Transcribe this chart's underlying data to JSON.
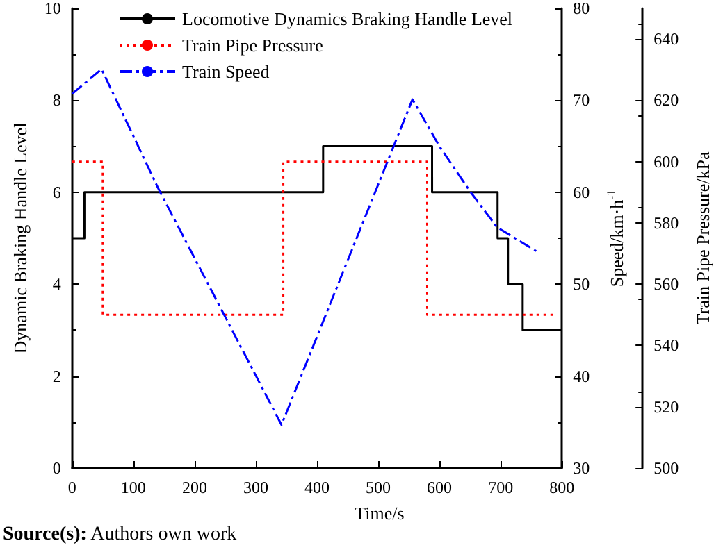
{
  "chart_data": {
    "type": "line",
    "xlabel": "Time/s",
    "ylabel": "Dynamic Braking Handle Level",
    "y2label": "Speed/km·h$^{-1}$",
    "y3label": "Train Pipe Pressure/kPa",
    "xlim": [
      0,
      800
    ],
    "xticks": [
      0,
      100,
      200,
      300,
      400,
      500,
      600,
      700,
      800
    ],
    "ylim": [
      0,
      10
    ],
    "yticks": [
      0,
      2,
      4,
      6,
      8,
      10
    ],
    "y2lim": [
      30,
      80
    ],
    "y2ticks": [
      30,
      40,
      50,
      60,
      70,
      80
    ],
    "y3lim": [
      500,
      650
    ],
    "y3ticks": [
      500,
      520,
      540,
      560,
      580,
      600,
      620,
      640
    ],
    "legend": "top",
    "grid": false,
    "marker": "none",
    "series": [
      {
        "name": "Locomotive Dynamics Braking Handle Level",
        "type": "step",
        "color": "#000000",
        "line_style": "solid",
        "x": [
          0,
          20,
          410,
          588,
          695,
          712,
          736,
          800
        ],
        "values": [
          5,
          6,
          7,
          6,
          5,
          4,
          3,
          3
        ]
      },
      {
        "name": "Train Pipe Pressure",
        "type": "step",
        "color": "#ff0000",
        "line_style": "dotted",
        "axis": "y3",
        "x": [
          0,
          50,
          345,
          580,
          790
        ],
        "values": [
          600,
          550,
          600,
          550,
          550
        ]
      },
      {
        "name": "Train Speed",
        "type": "line",
        "color": "#0000ff",
        "line_style": "dashed",
        "axis": "y2",
        "x": [
          0,
          48,
          140,
          342,
          556,
          600,
          650,
          694,
          758
        ],
        "values": [
          70.7,
          73.4,
          60.5,
          34.7,
          70.1,
          65,
          60.1,
          56.2,
          53.6
        ]
      }
    ],
    "annotations": [
      "Source(s): Authors own work"
    ]
  }
}
